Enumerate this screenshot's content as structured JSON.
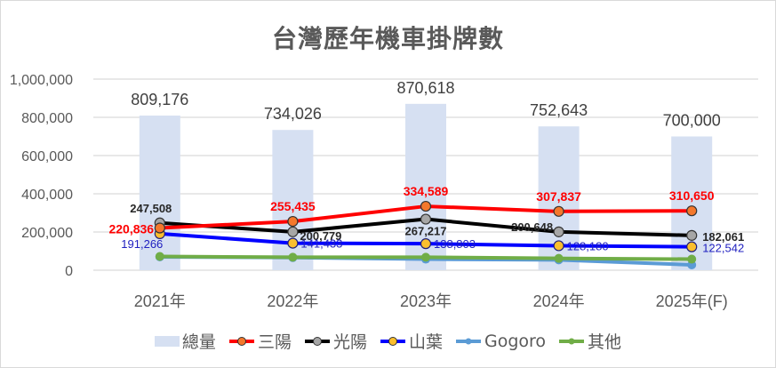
{
  "chart_data": {
    "type": "bar+line",
    "title": "台灣歷年機車掛牌數",
    "xlabel": "",
    "ylabel": "",
    "ylim": [
      0,
      1000000
    ],
    "yticks": [
      "1,000,000",
      "800,000",
      "600,000",
      "400,000",
      "200,000",
      "0"
    ],
    "ytick_values": [
      1000000,
      800000,
      600000,
      400000,
      200000,
      0
    ],
    "grid": true,
    "legend_position": "bottom",
    "categories": [
      "2021年",
      "2022年",
      "2023年",
      "2024年",
      "2025年(F)"
    ],
    "series": [
      {
        "name": "總量",
        "type": "bar",
        "color": "#d6e0f2",
        "values": [
          809176,
          734026,
          870618,
          752643,
          700000
        ],
        "labels": [
          "809,176",
          "734,026",
          "870,618",
          "752,643",
          "700,000"
        ]
      },
      {
        "name": "三陽",
        "type": "line",
        "color": "#ff0000",
        "marker": "#f4782c",
        "values": [
          220836,
          255435,
          334589,
          307837,
          310650
        ],
        "labels": [
          "220,836",
          "255,435",
          "334,589",
          "307,837",
          "310,650"
        ]
      },
      {
        "name": "光陽",
        "type": "line",
        "color": "#000000",
        "marker": "#a6a6a6",
        "values": [
          247508,
          200779,
          267217,
          200648,
          182061
        ],
        "labels": [
          "247,508",
          "200,779",
          "267,217",
          "200,648",
          "182,061"
        ]
      },
      {
        "name": "山葉",
        "type": "line",
        "color": "#0000ff",
        "marker": "#fbbf2d",
        "values": [
          191266,
          141433,
          138803,
          128180,
          122542
        ],
        "labels": [
          "191,266",
          "141,433",
          "138,803",
          "128,180",
          "122,542"
        ]
      },
      {
        "name": "Gogoro",
        "type": "line",
        "color": "#5b9bd5",
        "marker": "#5b9bd5",
        "values": [
          70000,
          66000,
          58000,
          54000,
          28000
        ],
        "labels": []
      },
      {
        "name": "其他",
        "type": "line",
        "color": "#70ad47",
        "marker": "#70ad47",
        "values": [
          72000,
          68000,
          68000,
          62000,
          58000
        ],
        "labels": []
      }
    ]
  },
  "legend": {
    "items": [
      "總量",
      "三陽",
      "光陽",
      "山葉",
      "Gogoro",
      "其他"
    ]
  }
}
